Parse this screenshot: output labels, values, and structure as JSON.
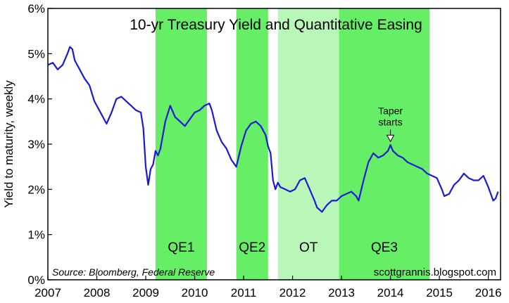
{
  "chart_data": {
    "type": "line",
    "title": "10-yr Treasury Yield and Quantitative Easing",
    "ylabel": "Yield to maturity, weekly",
    "xlabel": "",
    "source": "Source: Bloomberg, Federal Reserve",
    "credit": "scottgrannis.blogspot.com",
    "xlim": [
      2007.0,
      2016.25
    ],
    "ylim": [
      0,
      6
    ],
    "x_ticks": [
      "2007",
      "2008",
      "2009",
      "2010",
      "2011",
      "2012",
      "2013",
      "2014",
      "2015",
      "2016"
    ],
    "y_ticks": [
      "0%",
      "1%",
      "2%",
      "3%",
      "4%",
      "5%",
      "6%"
    ],
    "grid": false,
    "line_color": "#1a1ad6",
    "periods": [
      {
        "label": "QE1",
        "start": 2009.2,
        "end": 2010.25,
        "color": "#66ee66"
      },
      {
        "label": "QE2",
        "start": 2010.85,
        "end": 2011.5,
        "color": "#66ee66"
      },
      {
        "label": "OT",
        "start": 2011.7,
        "end": 2012.95,
        "color": "#b8f7b8"
      },
      {
        "label": "QE3",
        "start": 2012.95,
        "end": 2014.8,
        "color": "#66ee66"
      }
    ],
    "annotations": [
      {
        "lines": [
          "Taper",
          "starts"
        ],
        "x": 2014.0,
        "y": 2.98
      }
    ],
    "series": [
      {
        "x": [
          2007.0,
          2007.1,
          2007.2,
          2007.3,
          2007.4,
          2007.45,
          2007.5,
          2007.55,
          2007.65,
          2007.75,
          2007.85,
          2007.95,
          2008.05,
          2008.15,
          2008.2,
          2008.3,
          2008.4,
          2008.5,
          2008.6,
          2008.7,
          2008.8,
          2008.9,
          2008.95,
          2009.0,
          2009.05,
          2009.1,
          2009.15,
          2009.2,
          2009.25,
          2009.3,
          2009.4,
          2009.5,
          2009.6,
          2009.7,
          2009.8,
          2009.9,
          2010.0,
          2010.1,
          2010.2,
          2010.3,
          2010.35,
          2010.45,
          2010.55,
          2010.65,
          2010.75,
          2010.85,
          2010.95,
          2011.05,
          2011.15,
          2011.25,
          2011.35,
          2011.45,
          2011.5,
          2011.55,
          2011.6,
          2011.65,
          2011.7,
          2011.75,
          2011.85,
          2011.95,
          2012.05,
          2012.15,
          2012.25,
          2012.35,
          2012.45,
          2012.5,
          2012.6,
          2012.7,
          2012.8,
          2012.9,
          2013.0,
          2013.1,
          2013.2,
          2013.3,
          2013.35,
          2013.45,
          2013.55,
          2013.65,
          2013.75,
          2013.85,
          2013.95,
          2014.0,
          2014.05,
          2014.15,
          2014.25,
          2014.35,
          2014.45,
          2014.55,
          2014.65,
          2014.75,
          2014.85,
          2014.95,
          2015.05,
          2015.1,
          2015.2,
          2015.3,
          2015.4,
          2015.5,
          2015.6,
          2015.7,
          2015.8,
          2015.9,
          2016.0,
          2016.05,
          2016.1,
          2016.15,
          2016.2
        ],
        "y": [
          4.75,
          4.8,
          4.65,
          4.75,
          5.0,
          5.15,
          5.1,
          4.85,
          4.65,
          4.45,
          4.3,
          3.95,
          3.75,
          3.55,
          3.45,
          3.7,
          4.0,
          4.05,
          3.95,
          3.85,
          3.75,
          3.7,
          3.35,
          2.5,
          2.1,
          2.45,
          2.55,
          2.85,
          2.75,
          2.9,
          3.5,
          3.85,
          3.6,
          3.5,
          3.4,
          3.55,
          3.7,
          3.75,
          3.85,
          3.9,
          3.75,
          3.3,
          3.05,
          2.9,
          2.65,
          2.5,
          2.95,
          3.3,
          3.45,
          3.5,
          3.4,
          3.2,
          2.95,
          2.8,
          2.2,
          2.0,
          2.15,
          2.05,
          2.0,
          1.95,
          2.0,
          2.2,
          2.25,
          2.0,
          1.75,
          1.6,
          1.5,
          1.65,
          1.75,
          1.75,
          1.85,
          1.9,
          1.95,
          1.85,
          1.75,
          2.2,
          2.6,
          2.8,
          2.7,
          2.75,
          2.85,
          2.98,
          2.85,
          2.75,
          2.7,
          2.6,
          2.55,
          2.5,
          2.45,
          2.35,
          2.3,
          2.25,
          2.0,
          1.85,
          1.9,
          2.1,
          2.2,
          2.35,
          2.25,
          2.2,
          2.2,
          2.3,
          2.05,
          1.9,
          1.75,
          1.8,
          1.95
        ]
      }
    ]
  }
}
